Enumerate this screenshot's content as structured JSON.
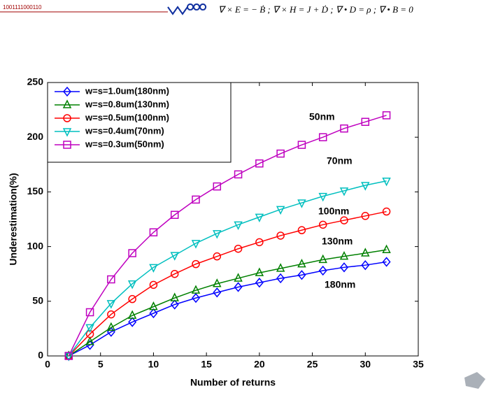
{
  "header": {
    "code": "1001111000110",
    "equations": "∇ × E = − Ḃ ; ∇ × H = J + Ḋ ; ∇ • D = ρ ; ∇ • B = 0"
  },
  "chart_data": {
    "type": "line",
    "x": [
      2,
      4,
      6,
      8,
      10,
      12,
      14,
      16,
      18,
      20,
      22,
      24,
      26,
      28,
      30,
      32
    ],
    "series": [
      {
        "name": "w=s=1.0um(180nm)",
        "color": "#0000ff",
        "marker": "diamond",
        "values": [
          0,
          10,
          22,
          31,
          39,
          47,
          53,
          58,
          63,
          67,
          71,
          74,
          78,
          81,
          83,
          86
        ]
      },
      {
        "name": "w=s=0.8um(130nm)",
        "color": "#008000",
        "marker": "triangle-up",
        "values": [
          0,
          13,
          26,
          37,
          45,
          53,
          60,
          66,
          71,
          76,
          80,
          84,
          88,
          91,
          94,
          97
        ]
      },
      {
        "name": "w=s=0.5um(100nm)",
        "color": "#ff0000",
        "marker": "circle",
        "values": [
          0,
          20,
          38,
          52,
          65,
          75,
          84,
          91,
          98,
          104,
          110,
          115,
          120,
          124,
          128,
          132
        ]
      },
      {
        "name": "w=s=0.4um(70nm)",
        "color": "#00bfbf",
        "marker": "triangle-down",
        "values": [
          0,
          26,
          48,
          66,
          81,
          92,
          103,
          112,
          120,
          127,
          134,
          140,
          146,
          151,
          156,
          160
        ]
      },
      {
        "name": "w=s=0.3um(50nm)",
        "color": "#bf00bf",
        "marker": "square",
        "values": [
          0,
          40,
          70,
          94,
          113,
          129,
          143,
          155,
          166,
          176,
          185,
          193,
          200,
          208,
          214,
          220
        ]
      }
    ],
    "x_label": "Number of returns",
    "y_label": "Underestimation(%)",
    "annotations": [
      "50nm",
      "70nm",
      "100nm",
      "130nm",
      "180nm"
    ],
    "xlim": [
      0,
      35
    ],
    "xticks": [
      0,
      5,
      10,
      15,
      20,
      25,
      30,
      35
    ],
    "ylim": [
      0,
      250
    ],
    "yticks": [
      0,
      50,
      100,
      150,
      200,
      250
    ],
    "grid": false,
    "legend": "upper left"
  }
}
